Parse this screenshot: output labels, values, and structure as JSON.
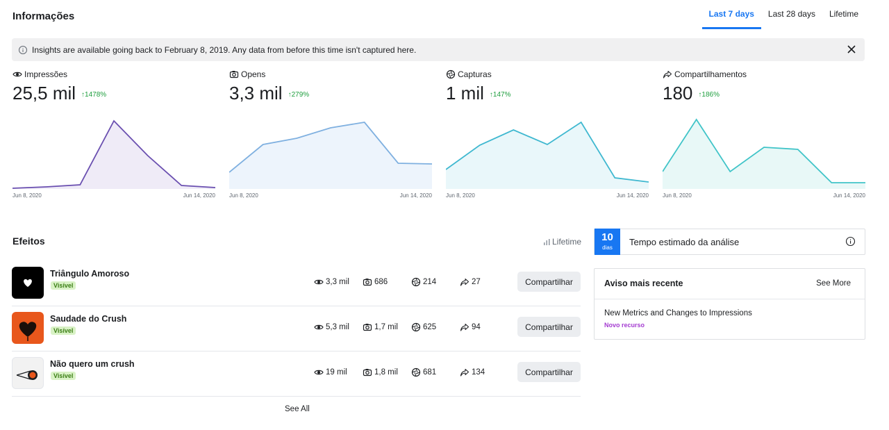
{
  "header": {
    "title": "Informações",
    "tabs": [
      {
        "label": "Last 7 days",
        "active": true
      },
      {
        "label": "Last 28 days",
        "active": false
      },
      {
        "label": "Lifetime",
        "active": false
      }
    ]
  },
  "banner": {
    "icon": "info-icon",
    "text": "Insights are available going back to February 8, 2019. Any data from before this time isn't captured here.",
    "close_icon": "close-icon"
  },
  "metrics": [
    {
      "label": "Impressões",
      "icon": "eye-icon",
      "value": "25,5 mil",
      "change": "1478%",
      "axis_start": "Jun 8, 2020",
      "axis_end": "Jun 14, 2020",
      "line_color": "#6a4fb0",
      "fill_color": "#efebf7"
    },
    {
      "label": "Opens",
      "icon": "camera-icon",
      "value": "3,3 mil",
      "change": "279%",
      "axis_start": "Jun 8, 2020",
      "axis_end": "Jun 14, 2020",
      "line_color": "#7fb0e0",
      "fill_color": "#edf4fc"
    },
    {
      "label": "Capturas",
      "icon": "aperture-icon",
      "value": "1 mil",
      "change": "147%",
      "axis_start": "Jun 8, 2020",
      "axis_end": "Jun 14, 2020",
      "line_color": "#3fb8d0",
      "fill_color": "#e9f7fa"
    },
    {
      "label": "Compartilhamentos",
      "icon": "share-icon",
      "value": "180",
      "change": "186%",
      "axis_start": "Jun 8, 2020",
      "axis_end": "Jun 14, 2020",
      "line_color": "#40c4c8",
      "fill_color": "#e8f8f7"
    }
  ],
  "chart_data": [
    {
      "type": "area",
      "title": "Impressões",
      "x": [
        "Jun 8, 2020",
        "Jun 9",
        "Jun 10",
        "Jun 11",
        "Jun 12",
        "Jun 13",
        "Jun 14, 2020"
      ],
      "values": [
        1,
        3,
        6,
        98,
        48,
        5,
        2
      ],
      "ylim": [
        0,
        100
      ]
    },
    {
      "type": "area",
      "title": "Opens",
      "x": [
        "Jun 8, 2020",
        "Jun 9",
        "Jun 10",
        "Jun 11",
        "Jun 12",
        "Jun 13",
        "Jun 14, 2020"
      ],
      "values": [
        24,
        64,
        73,
        88,
        96,
        37,
        36
      ],
      "ylim": [
        0,
        100
      ]
    },
    {
      "type": "area",
      "title": "Capturas",
      "x": [
        "Jun 8, 2020",
        "Jun 9",
        "Jun 10",
        "Jun 11",
        "Jun 12",
        "Jun 13",
        "Jun 14, 2020"
      ],
      "values": [
        28,
        63,
        85,
        64,
        96,
        16,
        10
      ],
      "ylim": [
        0,
        100
      ]
    },
    {
      "type": "area",
      "title": "Compartilhamentos",
      "x": [
        "Jun 8, 2020",
        "Jun 9",
        "Jun 10",
        "Jun 11",
        "Jun 12",
        "Jun 13",
        "Jun 14, 2020"
      ],
      "values": [
        25,
        100,
        25,
        60,
        57,
        9,
        9
      ],
      "ylim": [
        0,
        100
      ]
    }
  ],
  "effects_section": {
    "title": "Efeitos",
    "range_label": "Lifetime",
    "see_all": "See All",
    "items": [
      {
        "name": "Triângulo Amoroso",
        "status": "Visível",
        "impressions": "3,3 mil",
        "opens": "686",
        "captures": "214",
        "shares": "27",
        "share_label": "Compartilhar",
        "thumb_icon": "heart-icon"
      },
      {
        "name": "Saudade do Crush",
        "status": "Visível",
        "impressions": "5,3 mil",
        "opens": "1,7 mil",
        "captures": "625",
        "shares": "94",
        "share_label": "Compartilhar",
        "thumb_icon": "heart-icon"
      },
      {
        "name": "Não quero um crush",
        "status": "Visível",
        "impressions": "19 mil",
        "opens": "1,8 mil",
        "captures": "681",
        "shares": "134",
        "share_label": "Compartilhar",
        "thumb_icon": "crush-target-icon"
      }
    ]
  },
  "review": {
    "days_number": "10",
    "days_unit": "dias",
    "label": "Tempo estimado da análise",
    "icon": "info-icon"
  },
  "notice": {
    "title": "Aviso mais recente",
    "see_more": "See More",
    "item_title": "New Metrics and Changes to Impressions",
    "item_tag": "Novo recurso"
  }
}
